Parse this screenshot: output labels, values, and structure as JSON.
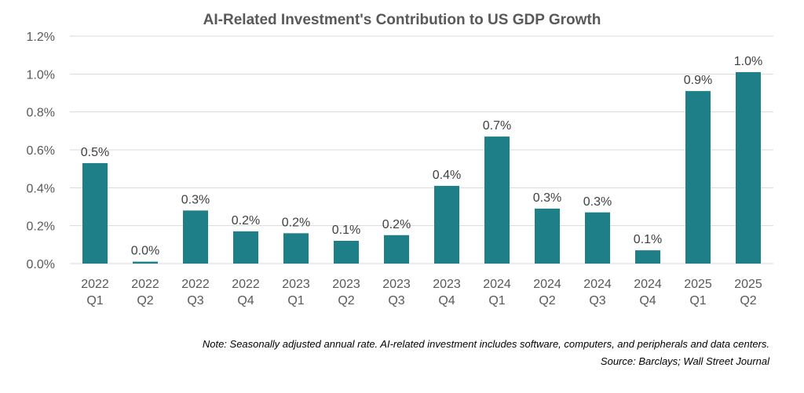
{
  "chart_data": {
    "type": "bar",
    "title": "AI-Related Investment's Contribution to US GDP Growth",
    "categories": [
      [
        "2022",
        "Q1"
      ],
      [
        "2022",
        "Q2"
      ],
      [
        "2022",
        "Q3"
      ],
      [
        "2022",
        "Q4"
      ],
      [
        "2023",
        "Q1"
      ],
      [
        "2023",
        "Q2"
      ],
      [
        "2023",
        "Q3"
      ],
      [
        "2023",
        "Q4"
      ],
      [
        "2024",
        "Q1"
      ],
      [
        "2024",
        "Q2"
      ],
      [
        "2024",
        "Q3"
      ],
      [
        "2024",
        "Q4"
      ],
      [
        "2025",
        "Q1"
      ],
      [
        "2025",
        "Q2"
      ]
    ],
    "values": [
      0.53,
      0.01,
      0.28,
      0.17,
      0.16,
      0.12,
      0.15,
      0.41,
      0.67,
      0.29,
      0.27,
      0.07,
      0.91,
      1.01
    ],
    "data_labels": [
      "0.5%",
      "0.0%",
      "0.3%",
      "0.2%",
      "0.2%",
      "0.1%",
      "0.2%",
      "0.4%",
      "0.7%",
      "0.3%",
      "0.3%",
      "0.1%",
      "0.9%",
      "1.0%"
    ],
    "ylim": [
      0,
      1.2
    ],
    "yticks": [
      "0.0%",
      "0.2%",
      "0.4%",
      "0.6%",
      "0.8%",
      "1.0%",
      "1.2%"
    ],
    "grid": true,
    "bar_color": "#1f7f88",
    "xlabel": "",
    "ylabel": ""
  },
  "notes": {
    "note": "Note: Seasonally adjusted annual rate. AI-related investment includes software, computers, and peripherals and data centers.",
    "source": "Source: Barclays; Wall Street Journal"
  }
}
